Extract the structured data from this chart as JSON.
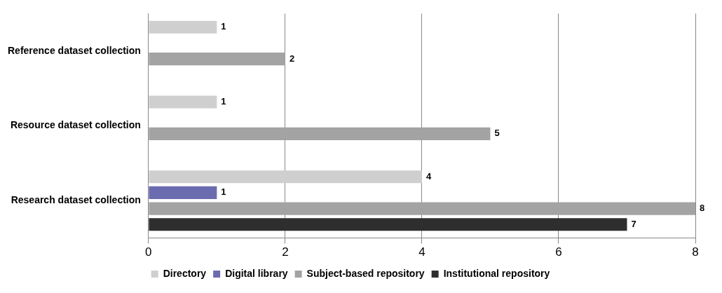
{
  "chart_data": {
    "type": "bar",
    "orientation": "horizontal",
    "categories": [
      "Reference dataset collection",
      "Resource dataset collection",
      "Research dataset collection"
    ],
    "series": [
      {
        "name": "Directory",
        "color": "#cfcfcf",
        "values": [
          1,
          1,
          4
        ]
      },
      {
        "name": "Digital library",
        "color": "#6b6bb0",
        "values": [
          null,
          null,
          1
        ]
      },
      {
        "name": "Subject-based repository",
        "color": "#a3a3a3",
        "values": [
          2,
          5,
          8
        ]
      },
      {
        "name": "Institutional repository",
        "color": "#2e2e2e",
        "values": [
          null,
          null,
          7
        ]
      }
    ],
    "xlim": [
      0,
      8
    ],
    "xticks": [
      0,
      2,
      4,
      6,
      8
    ],
    "grid": "x",
    "legend": "bottom",
    "data_labels": true
  }
}
